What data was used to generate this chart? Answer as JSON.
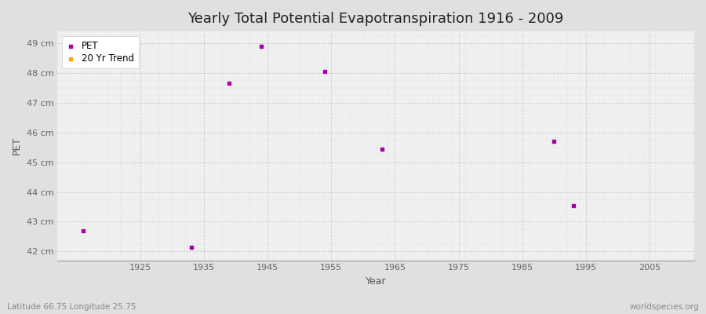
{
  "title": "Yearly Total Potential Evapotranspiration 1916 - 2009",
  "xlabel": "Year",
  "ylabel": "PET",
  "bottom_left_text": "Latitude 66.75 Longitude 25.75",
  "bottom_right_text": "worldspecies.org",
  "background_color": "#e0e0e0",
  "plot_bg_color": "#f0f0f0",
  "ylim": [
    41.7,
    49.4
  ],
  "xlim": [
    1912,
    2012
  ],
  "ytick_labels": [
    "42 cm",
    "43 cm",
    "44 cm",
    "45 cm",
    "46 cm",
    "47 cm",
    "48 cm",
    "49 cm"
  ],
  "ytick_values": [
    42,
    43,
    44,
    45,
    46,
    47,
    48,
    49
  ],
  "xtick_values": [
    1925,
    1935,
    1945,
    1955,
    1965,
    1975,
    1985,
    1995,
    2005
  ],
  "pet_color": "#aa00aa",
  "trend_color": "#ffa500",
  "pet_x": [
    1916,
    1933,
    1939,
    1944,
    1954,
    1963,
    1990,
    1993
  ],
  "pet_y": [
    42.68,
    42.13,
    47.65,
    48.9,
    48.05,
    45.45,
    45.7,
    43.55
  ],
  "legend_entries": [
    "PET",
    "20 Yr Trend"
  ],
  "title_fontsize": 13,
  "tick_fontsize": 8,
  "label_fontsize": 9
}
